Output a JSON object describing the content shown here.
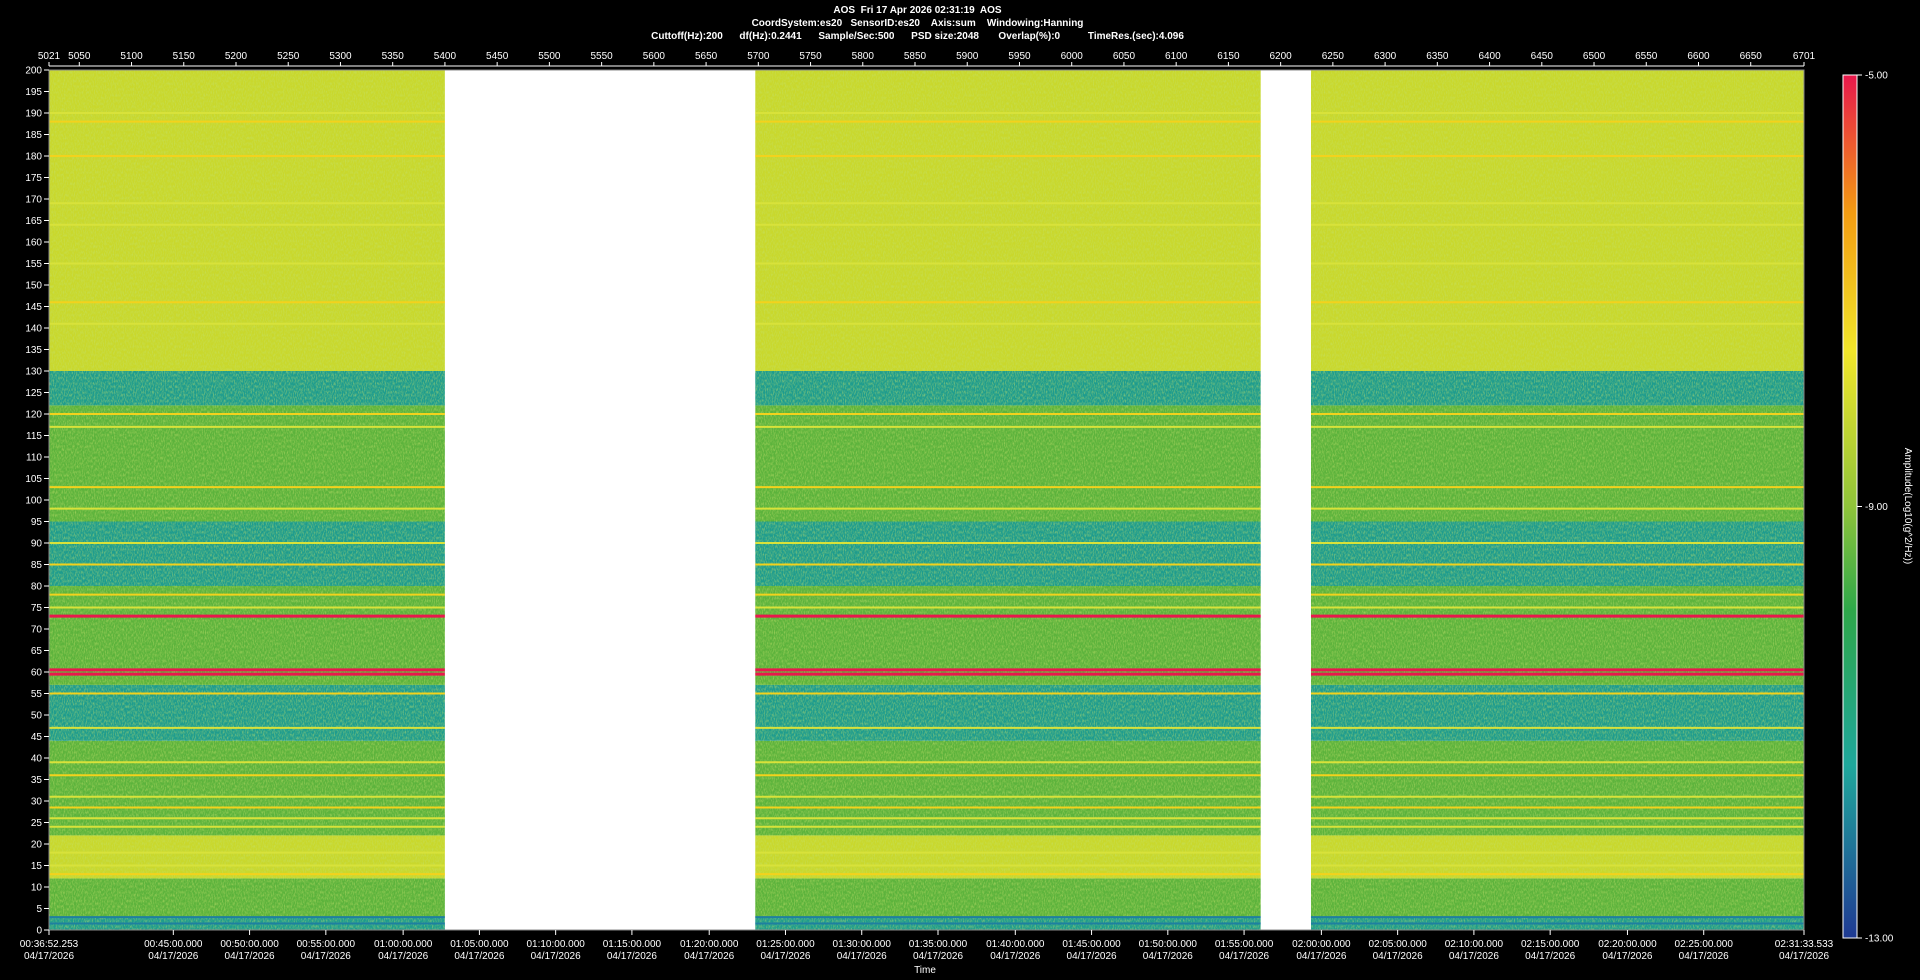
{
  "header": {
    "line1": "AOS  Fri 17 Apr 2026 02:31:19  AOS",
    "line2": "CoordSystem:es20   SensorID:es20    Axis:sum    Windowing:Hanning",
    "line3": "Cuttoff(Hz):200      df(Hz):0.2441      Sample/Sec:500      PSD size:2048       Overlap(%):0          TimeRes.(sec):4.096"
  },
  "chart_data": {
    "type": "heatmap",
    "title": "AOS  Fri 17 Apr 2026 02:31:19  AOS",
    "xlabel": "Time",
    "ylabel": "",
    "colorbar_label": "Amplitude(Log10(g^2/Hz))",
    "colorbar_ticks": [
      "-5.00",
      "-9.00",
      "-13.00"
    ],
    "colorbar_range": [
      -13,
      -5
    ],
    "colors": [
      "#1f3a93",
      "#1fa89c",
      "#2ea84a",
      "#8fc43a",
      "#f2e62a",
      "#f39c12",
      "#e8184c"
    ],
    "ylim": [
      0,
      200
    ],
    "y_ticks": [
      "0",
      "5",
      "10",
      "15",
      "20",
      "25",
      "30",
      "35",
      "40",
      "45",
      "50",
      "55",
      "60",
      "65",
      "70",
      "75",
      "80",
      "85",
      "90",
      "95",
      "100",
      "105",
      "110",
      "115",
      "120",
      "125",
      "130",
      "135",
      "140",
      "145",
      "150",
      "155",
      "160",
      "165",
      "170",
      "175",
      "180",
      "185",
      "190",
      "195",
      "200"
    ],
    "top_axis_range": [
      5021,
      6701
    ],
    "top_ticks": [
      "5021",
      "5050",
      "5100",
      "5150",
      "5200",
      "5250",
      "5300",
      "5350",
      "5400",
      "5450",
      "5500",
      "5550",
      "5600",
      "5650",
      "5700",
      "5750",
      "5800",
      "5850",
      "5900",
      "5950",
      "6000",
      "6050",
      "6100",
      "6150",
      "6200",
      "6250",
      "6300",
      "6350",
      "6400",
      "6450",
      "6500",
      "6550",
      "6600",
      "6650",
      "6701"
    ],
    "bottom_ticks": [
      {
        "time": "00:36:52.253",
        "date": "04/17/2026",
        "frame": 5021
      },
      {
        "time": "00:45:00.000",
        "date": "04/17/2026",
        "frame": 5140
      },
      {
        "time": "00:50:00.000",
        "date": "04/17/2026",
        "frame": 5213
      },
      {
        "time": "00:55:00.000",
        "date": "04/17/2026",
        "frame": 5286
      },
      {
        "time": "01:00:00.000",
        "date": "04/17/2026",
        "frame": 5360
      },
      {
        "time": "01:05:00.000",
        "date": "04/17/2026",
        "frame": 5433
      },
      {
        "time": "01:10:00.000",
        "date": "04/17/2026",
        "frame": 5506
      },
      {
        "time": "01:15:00.000",
        "date": "04/17/2026",
        "frame": 5579
      },
      {
        "time": "01:20:00.000",
        "date": "04/17/2026",
        "frame": 5653
      },
      {
        "time": "01:25:00.000",
        "date": "04/17/2026",
        "frame": 5726
      },
      {
        "time": "01:30:00.000",
        "date": "04/17/2026",
        "frame": 5799
      },
      {
        "time": "01:35:00.000",
        "date": "04/17/2026",
        "frame": 5872
      },
      {
        "time": "01:40:00.000",
        "date": "04/17/2026",
        "frame": 5946
      },
      {
        "time": "01:45:00.000",
        "date": "04/17/2026",
        "frame": 6019
      },
      {
        "time": "01:50:00.000",
        "date": "04/17/2026",
        "frame": 6092
      },
      {
        "time": "01:55:00.000",
        "date": "04/17/2026",
        "frame": 6165
      },
      {
        "time": "02:00:00.000",
        "date": "04/17/2026",
        "frame": 6239
      },
      {
        "time": "02:05:00.000",
        "date": "04/17/2026",
        "frame": 6312
      },
      {
        "time": "02:10:00.000",
        "date": "04/17/2026",
        "frame": 6385
      },
      {
        "time": "02:15:00.000",
        "date": "04/17/2026",
        "frame": 6458
      },
      {
        "time": "02:20:00.000",
        "date": "04/17/2026",
        "frame": 6532
      },
      {
        "time": "02:25:00.000",
        "date": "04/17/2026",
        "frame": 6605
      },
      {
        "time": "02:31:33.533",
        "date": "04/17/2026",
        "frame": 6701
      }
    ],
    "data_segments": [
      [
        5021,
        5400
      ],
      [
        5697,
        6181
      ],
      [
        6229,
        6701
      ]
    ],
    "gap_segments": [
      [
        5400,
        5697
      ],
      [
        6181,
        6229
      ]
    ],
    "spectral_lines": [
      {
        "freq": 1.5,
        "level": "low"
      },
      {
        "freq": 3,
        "level": "low"
      },
      {
        "freq": 13,
        "level": "high"
      },
      {
        "freq": 15,
        "level": "mid"
      },
      {
        "freq": 18,
        "level": "mid"
      },
      {
        "freq": 24,
        "level": "mid"
      },
      {
        "freq": 26,
        "level": "mid"
      },
      {
        "freq": 28.5,
        "level": "high"
      },
      {
        "freq": 31,
        "level": "mid"
      },
      {
        "freq": 36,
        "level": "high"
      },
      {
        "freq": 39,
        "level": "mid"
      },
      {
        "freq": 47,
        "level": "mid"
      },
      {
        "freq": 55,
        "level": "high"
      },
      {
        "freq": 59.5,
        "level": "peak"
      },
      {
        "freq": 60.5,
        "level": "peak"
      },
      {
        "freq": 73,
        "level": "peak"
      },
      {
        "freq": 75,
        "level": "mid"
      },
      {
        "freq": 78,
        "level": "high"
      },
      {
        "freq": 85,
        "level": "high"
      },
      {
        "freq": 90,
        "level": "mid"
      },
      {
        "freq": 98,
        "level": "mid"
      },
      {
        "freq": 103,
        "level": "high"
      },
      {
        "freq": 117,
        "level": "mid"
      },
      {
        "freq": 120,
        "level": "high"
      },
      {
        "freq": 141,
        "level": "mid"
      },
      {
        "freq": 146,
        "level": "high"
      },
      {
        "freq": 155,
        "level": "mid"
      },
      {
        "freq": 164,
        "level": "mid"
      },
      {
        "freq": 169,
        "level": "mid"
      },
      {
        "freq": 180,
        "level": "high"
      },
      {
        "freq": 188,
        "level": "high"
      },
      {
        "freq": 190,
        "level": "mid"
      }
    ],
    "background_bands": [
      {
        "from": 0,
        "to": 3,
        "level": "low"
      },
      {
        "from": 3,
        "to": 12,
        "level": "mid"
      },
      {
        "from": 12,
        "to": 22,
        "level": "high"
      },
      {
        "from": 22,
        "to": 44,
        "level": "mid"
      },
      {
        "from": 44,
        "to": 57,
        "level": "low"
      },
      {
        "from": 57,
        "to": 80,
        "level": "mid"
      },
      {
        "from": 80,
        "to": 95,
        "level": "low"
      },
      {
        "from": 95,
        "to": 122,
        "level": "mid"
      },
      {
        "from": 122,
        "to": 130,
        "level": "low"
      },
      {
        "from": 130,
        "to": 200,
        "level": "high"
      }
    ]
  }
}
